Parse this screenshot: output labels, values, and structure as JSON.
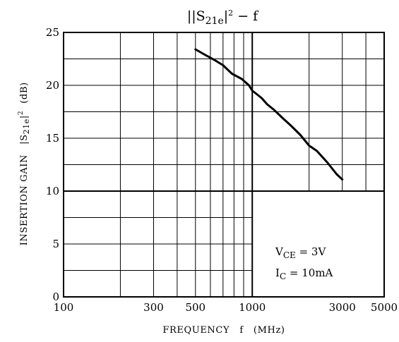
{
  "chart_data": {
    "type": "line",
    "title": {
      "main": "|S",
      "sub": "21e",
      "sup_left": "|",
      "exp": "2",
      "suffix": " − f"
    },
    "xlabel": "FREQUENCY   f   (MHz)",
    "ylabel": {
      "prefix": "INSERTION GAIN   |S",
      "sub": "21e",
      "bar": "|",
      "exp": "2",
      "unit": "(dB)"
    },
    "x_scale": "log",
    "xlim": [
      100,
      5000
    ],
    "ylim": [
      0,
      25
    ],
    "x_tick_labels": [
      "100",
      "300",
      "500",
      "1000",
      "3000",
      "5000"
    ],
    "y_tick_labels": [
      "0",
      "5",
      "10",
      "15",
      "20",
      "25"
    ],
    "grid": true,
    "annotations": [
      {
        "main": "V",
        "sub": "CE",
        "rest": " = 3V"
      },
      {
        "main": "I",
        "sub": "C",
        "rest": " = 10mA"
      }
    ],
    "series": [
      {
        "x": [
          500,
          560,
          630,
          700,
          780,
          880,
          960,
          1000,
          1050,
          1120,
          1200,
          1300,
          1450,
          1600,
          1800,
          2000,
          2200,
          2500,
          2800,
          3000
        ],
        "y": [
          23.4,
          22.9,
          22.4,
          21.9,
          21.1,
          20.6,
          20.0,
          19.5,
          19.2,
          18.8,
          18.2,
          17.7,
          16.9,
          16.2,
          15.3,
          14.3,
          13.8,
          12.7,
          11.6,
          11.1
        ]
      }
    ]
  }
}
